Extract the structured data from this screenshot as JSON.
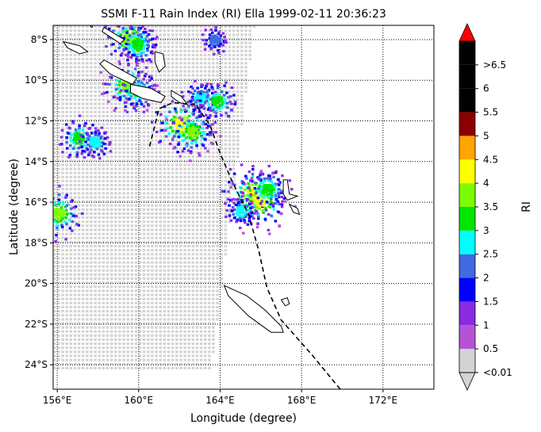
{
  "chart_data": {
    "type": "heatmap",
    "title": "SSMI F-11 Rain Index (RI) Ella 1999-02-11 20:36:23",
    "xlabel": "Longitude (degree)",
    "ylabel": "Latitude (degree)",
    "xlim": [
      155.8,
      174.5
    ],
    "ylim": [
      -25.2,
      -7.3
    ],
    "x_ticks": [
      {
        "value": 156,
        "label": "156°E"
      },
      {
        "value": 160,
        "label": "160°E"
      },
      {
        "value": 164,
        "label": "164°E"
      },
      {
        "value": 168,
        "label": "168°E"
      },
      {
        "value": 172,
        "label": "172°E"
      }
    ],
    "y_ticks": [
      {
        "value": -8,
        "label": "8°S"
      },
      {
        "value": -10,
        "label": "10°S"
      },
      {
        "value": -12,
        "label": "12°S"
      },
      {
        "value": -14,
        "label": "14°S"
      },
      {
        "value": -16,
        "label": "16°S"
      },
      {
        "value": -18,
        "label": "18°S"
      },
      {
        "value": -20,
        "label": "20°S"
      },
      {
        "value": -22,
        "label": "22°S"
      },
      {
        "value": -24,
        "label": "24°S"
      }
    ],
    "grid": "dotted",
    "colorbar": {
      "label": "RI",
      "levels": [
        {
          "label": "<0.01",
          "color": "#d3d3d3"
        },
        {
          "label": "0.5",
          "color": "#b553d8"
        },
        {
          "label": "1",
          "color": "#8a2be2"
        },
        {
          "label": "1.5",
          "color": "#0000ff"
        },
        {
          "label": "2",
          "color": "#4169e1"
        },
        {
          "label": "2.5",
          "color": "#00ffff"
        },
        {
          "label": "3",
          "color": "#00e600"
        },
        {
          "label": "3.5",
          "color": "#7cfc00"
        },
        {
          "label": "4",
          "color": "#ffff00"
        },
        {
          "label": "4.5",
          "color": "#ffa500"
        },
        {
          "label": "5",
          "color": "#8b0000"
        },
        {
          "label": "5.5",
          "color": "#000000"
        },
        {
          "label": "6",
          "color": "#000000"
        },
        {
          "label": ">6.5",
          "color": "#000000"
        }
      ],
      "over_color": "#ff0000",
      "under_color": "#d3d3d3"
    },
    "swath_edges": {
      "west_lon": 155.8,
      "east_top": [
        -7.3,
        165.6
      ],
      "east_bottom": [
        -24.2,
        163.5
      ]
    },
    "rain_cells": [
      {
        "lon": 159.5,
        "lat": -7.9,
        "ri": 3.0
      },
      {
        "lon": 159.9,
        "lat": -8.2,
        "ri": 2.5
      },
      {
        "lon": 163.7,
        "lat": -8.0,
        "ri": 1.5
      },
      {
        "lon": 159.4,
        "lat": -10.2,
        "ri": 3.2
      },
      {
        "lon": 159.9,
        "lat": -10.5,
        "ri": 2.5
      },
      {
        "lon": 163.0,
        "lat": -10.8,
        "ri": 2.0
      },
      {
        "lon": 163.8,
        "lat": -11.0,
        "ri": 2.5
      },
      {
        "lon": 162.0,
        "lat": -12.1,
        "ri": 3.5
      },
      {
        "lon": 162.6,
        "lat": -12.5,
        "ri": 3.2
      },
      {
        "lon": 157.0,
        "lat": -12.8,
        "ri": 2.5
      },
      {
        "lon": 157.8,
        "lat": -13.0,
        "ri": 2.0
      },
      {
        "lon": 165.5,
        "lat": -15.5,
        "ri": 3.5
      },
      {
        "lon": 165.9,
        "lat": -15.9,
        "ri": 3.6
      },
      {
        "lon": 166.3,
        "lat": -15.3,
        "ri": 2.5
      },
      {
        "lon": 165.0,
        "lat": -16.4,
        "ri": 2.0
      },
      {
        "lon": 156.0,
        "lat": -16.5,
        "ri": 3.0
      }
    ],
    "track": [
      [
        169.9,
        -25.2
      ],
      [
        168.5,
        -23.5
      ],
      [
        167.0,
        -21.8
      ],
      [
        166.3,
        -20.2
      ],
      [
        165.9,
        -18.4
      ],
      [
        165.4,
        -16.6
      ],
      [
        164.6,
        -15.0
      ],
      [
        164.0,
        -13.6
      ],
      [
        163.5,
        -12.2
      ],
      [
        162.8,
        -11.2
      ],
      [
        161.7,
        -11.1
      ],
      [
        161.0,
        -11.4
      ],
      [
        160.7,
        -12.6
      ],
      [
        160.5,
        -13.4
      ]
    ],
    "islands": [
      {
        "name": "",
        "points": [
          [
            158.1,
            -9.2
          ],
          [
            158.3,
            -9.0
          ],
          [
            159.0,
            -9.4
          ],
          [
            159.9,
            -9.9
          ],
          [
            159.7,
            -10.2
          ],
          [
            158.6,
            -9.7
          ]
        ]
      },
      {
        "name": "",
        "points": [
          [
            159.6,
            -10.2
          ],
          [
            160.6,
            -10.4
          ],
          [
            161.3,
            -10.8
          ],
          [
            161.1,
            -11.1
          ],
          [
            160.2,
            -10.9
          ],
          [
            159.6,
            -10.6
          ]
        ]
      },
      {
        "name": "",
        "points": [
          [
            160.8,
            -8.6
          ],
          [
            161.2,
            -8.7
          ],
          [
            161.3,
            -9.3
          ],
          [
            161.0,
            -9.6
          ],
          [
            160.8,
            -9.1
          ]
        ]
      },
      {
        "name": "",
        "points": [
          [
            161.6,
            -10.5
          ],
          [
            162.1,
            -10.8
          ],
          [
            162.4,
            -11.2
          ],
          [
            162.0,
            -11.1
          ],
          [
            161.6,
            -10.8
          ]
        ]
      },
      {
        "name": "",
        "points": [
          [
            156.3,
            -8.1
          ],
          [
            157.1,
            -8.3
          ],
          [
            157.5,
            -8.6
          ],
          [
            157.1,
            -8.7
          ],
          [
            156.5,
            -8.4
          ]
        ]
      },
      {
        "name": "",
        "points": [
          [
            158.3,
            -7.4
          ],
          [
            159.3,
            -8.0
          ],
          [
            159.1,
            -8.2
          ],
          [
            158.2,
            -7.6
          ]
        ]
      },
      {
        "name": "",
        "points": [
          [
            157.5,
            -7.2
          ],
          [
            157.8,
            -7.2
          ],
          [
            157.7,
            -7.4
          ]
        ]
      },
      {
        "name": "",
        "points": [
          [
            167.1,
            -14.9
          ],
          [
            167.3,
            -14.9
          ],
          [
            167.4,
            -15.6
          ],
          [
            167.8,
            -15.7
          ],
          [
            167.3,
            -15.9
          ],
          [
            167.1,
            -15.6
          ]
        ]
      },
      {
        "name": "",
        "points": [
          [
            167.4,
            -16.1
          ],
          [
            167.8,
            -16.3
          ],
          [
            167.9,
            -16.6
          ],
          [
            167.6,
            -16.5
          ]
        ]
      },
      {
        "name": "",
        "points": [
          [
            164.2,
            -20.1
          ],
          [
            165.3,
            -20.6
          ],
          [
            166.2,
            -21.3
          ],
          [
            167.0,
            -22.1
          ],
          [
            167.1,
            -22.4
          ],
          [
            166.5,
            -22.4
          ],
          [
            165.4,
            -21.6
          ],
          [
            164.4,
            -20.6
          ]
        ]
      },
      {
        "name": "",
        "points": [
          [
            167.0,
            -20.8
          ],
          [
            167.3,
            -20.7
          ],
          [
            167.4,
            -21.0
          ],
          [
            167.2,
            -21.1
          ]
        ]
      }
    ]
  }
}
